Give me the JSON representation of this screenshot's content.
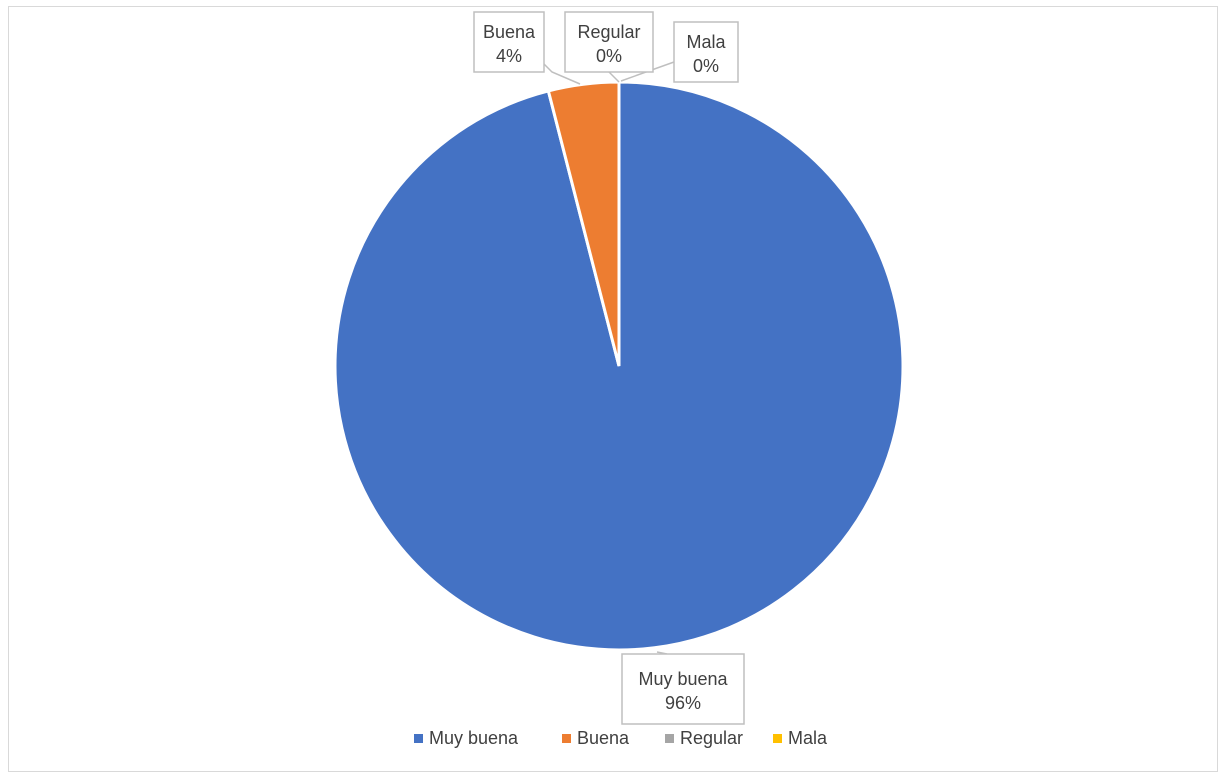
{
  "chart_data": {
    "type": "pie",
    "title": "",
    "categories": [
      "Muy buena",
      "Buena",
      "Regular",
      "Mala"
    ],
    "values": [
      96,
      4,
      0,
      0
    ],
    "value_labels": [
      "96%",
      "4%",
      "0%",
      "0%"
    ],
    "colors": [
      "#4472C4",
      "#ED7D31",
      "#A5A5A5",
      "#FFC000"
    ],
    "legend_position": "bottom",
    "start_angle": "top, clockwise"
  }
}
